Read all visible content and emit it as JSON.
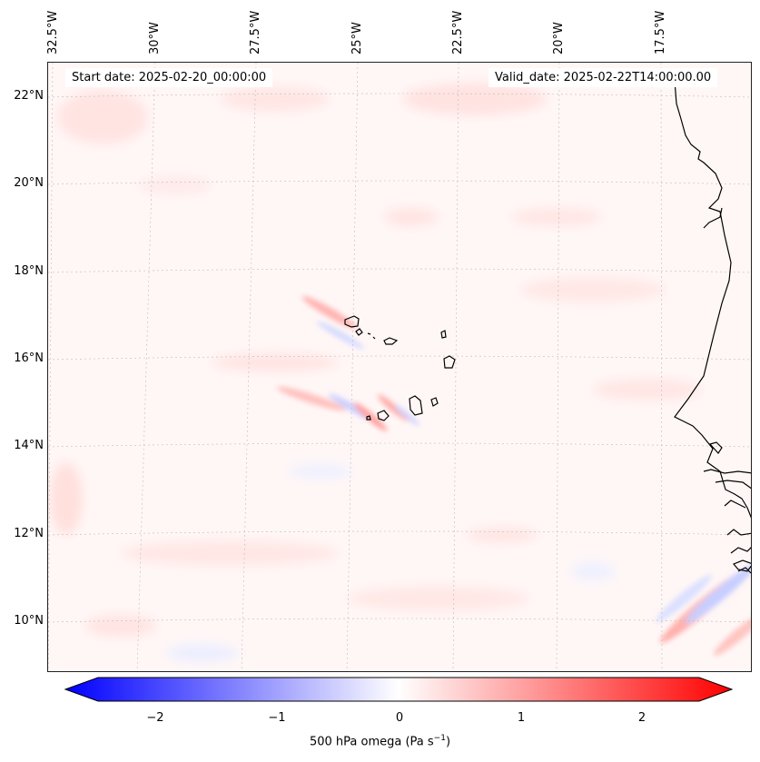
{
  "header": {
    "start_date": "Start date: 2025-02-20_00:00:00",
    "valid_date": "Valid_date: 2025-02-22T14:00:00.00"
  },
  "axes": {
    "lon_ticks": [
      "32.5°W",
      "30°W",
      "27.5°W",
      "25°W",
      "22.5°W",
      "20°W",
      "17.5°W"
    ],
    "lat_ticks": [
      "22°N",
      "20°N",
      "18°N",
      "16°N",
      "14°N",
      "12°N",
      "10°N"
    ]
  },
  "colorbar": {
    "ticks": [
      "−2",
      "−1",
      "0",
      "1",
      "2"
    ],
    "label_main": "500 hPa omega (Pa s",
    "label_sup": "−1",
    "label_end": ")",
    "min": -2.6,
    "max": 2.6,
    "neg_color": "#0000ff",
    "mid_color": "#ffffff",
    "pos_color": "#ff0000"
  }
}
